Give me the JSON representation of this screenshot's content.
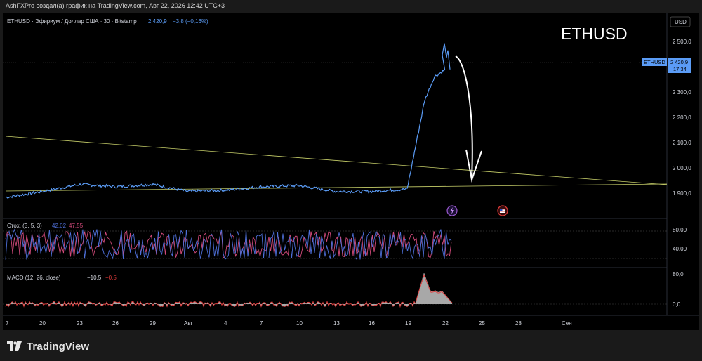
{
  "header": {
    "attribution": "AshFXPro создал(а) график на TradingView.com, Авг 22, 2026 12:42 UTC+3"
  },
  "symbol": {
    "title": "ETHUSD · Эфириум / Доллар США · 30 · Bitstamp",
    "price": "2 420,9",
    "change": "−3,8 (−0,16%)",
    "big_label": "ETHUSD",
    "currency_button": "USD",
    "price_tag_name": "ETHUSD",
    "price_tag_value": "2 420,9",
    "price_tag_time": "17:34"
  },
  "price_axis": {
    "ticks": [
      "2 500,0",
      "2 300,0",
      "2 200,0",
      "2 100,0",
      "2 000,0",
      "1 900,0"
    ]
  },
  "stochastic": {
    "label": "Стох. (3, 5, 3)",
    "k_value": "42,02",
    "d_value": "47,55",
    "ticks": [
      "80,00",
      "40,00"
    ]
  },
  "macd": {
    "label": "MACD (12, 26, close)",
    "value": "−10,5",
    "signal_value": "−0,5",
    "ticks": [
      "80,0",
      "0,0"
    ]
  },
  "time_axis": {
    "labels": [
      "7",
      "20",
      "23",
      "26",
      "29",
      "Авг",
      "4",
      "7",
      "10",
      "13",
      "16",
      "19",
      "22",
      "25",
      "28",
      "Сен"
    ]
  },
  "footer": {
    "brand": "TradingView"
  },
  "colors": {
    "price_line": "#5b9cf6",
    "trendline": "#c8d06a",
    "stoch_k": "#4e6fd8",
    "stoch_d": "#d14a7a",
    "macd_line": "#e03a3a",
    "macd_hist": "#a8a8a8",
    "price_tag_bg": "#5b9cf6"
  },
  "chart_data": {
    "type": "line",
    "series": [
      {
        "x": [
          "7",
          "20",
          "23",
          "26",
          "29",
          "Авг",
          "4",
          "7",
          "10",
          "13",
          "16",
          "19",
          "20",
          "21",
          "22"
        ],
        "values": [
          1880,
          1905,
          1935,
          1925,
          1935,
          1905,
          1910,
          1925,
          1930,
          1905,
          1905,
          1915,
          2290,
          2390,
          2420
        ]
      }
    ],
    "ylim": [
      1800,
      2600
    ],
    "annotations": [
      "ETHUSD"
    ]
  }
}
